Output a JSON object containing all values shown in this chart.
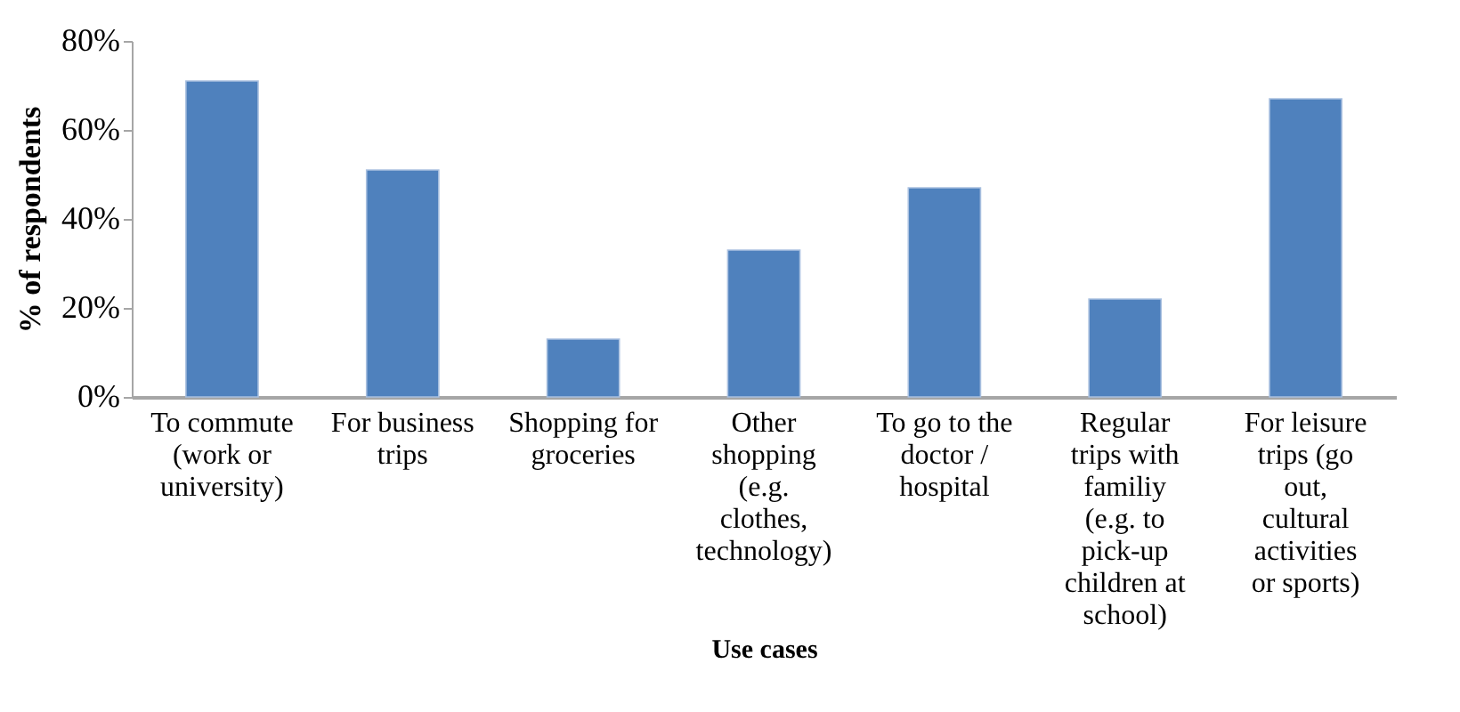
{
  "chart_data": {
    "type": "bar",
    "xlabel": "Use cases",
    "ylabel": "% of respondents",
    "categories": [
      "To commute (work or university)",
      "For business trips",
      "Shopping for groceries",
      "Other shopping (e.g. clothes, technology)",
      "To go to the doctor / hospital",
      "Regular trips with familiy (e.g. to pick-up children at school)",
      "For leisure trips (go out, cultural activities or sports)"
    ],
    "values": [
      71,
      51,
      13,
      33,
      47,
      22,
      67
    ],
    "color": "#4f81bd",
    "ylim": [
      0,
      80
    ],
    "yticks": [
      {
        "value": 0,
        "label": "0%"
      },
      {
        "value": 20,
        "label": "20%"
      },
      {
        "value": 40,
        "label": "40%"
      },
      {
        "value": 60,
        "label": "60%"
      },
      {
        "value": 80,
        "label": "80%"
      }
    ],
    "grid": false
  }
}
